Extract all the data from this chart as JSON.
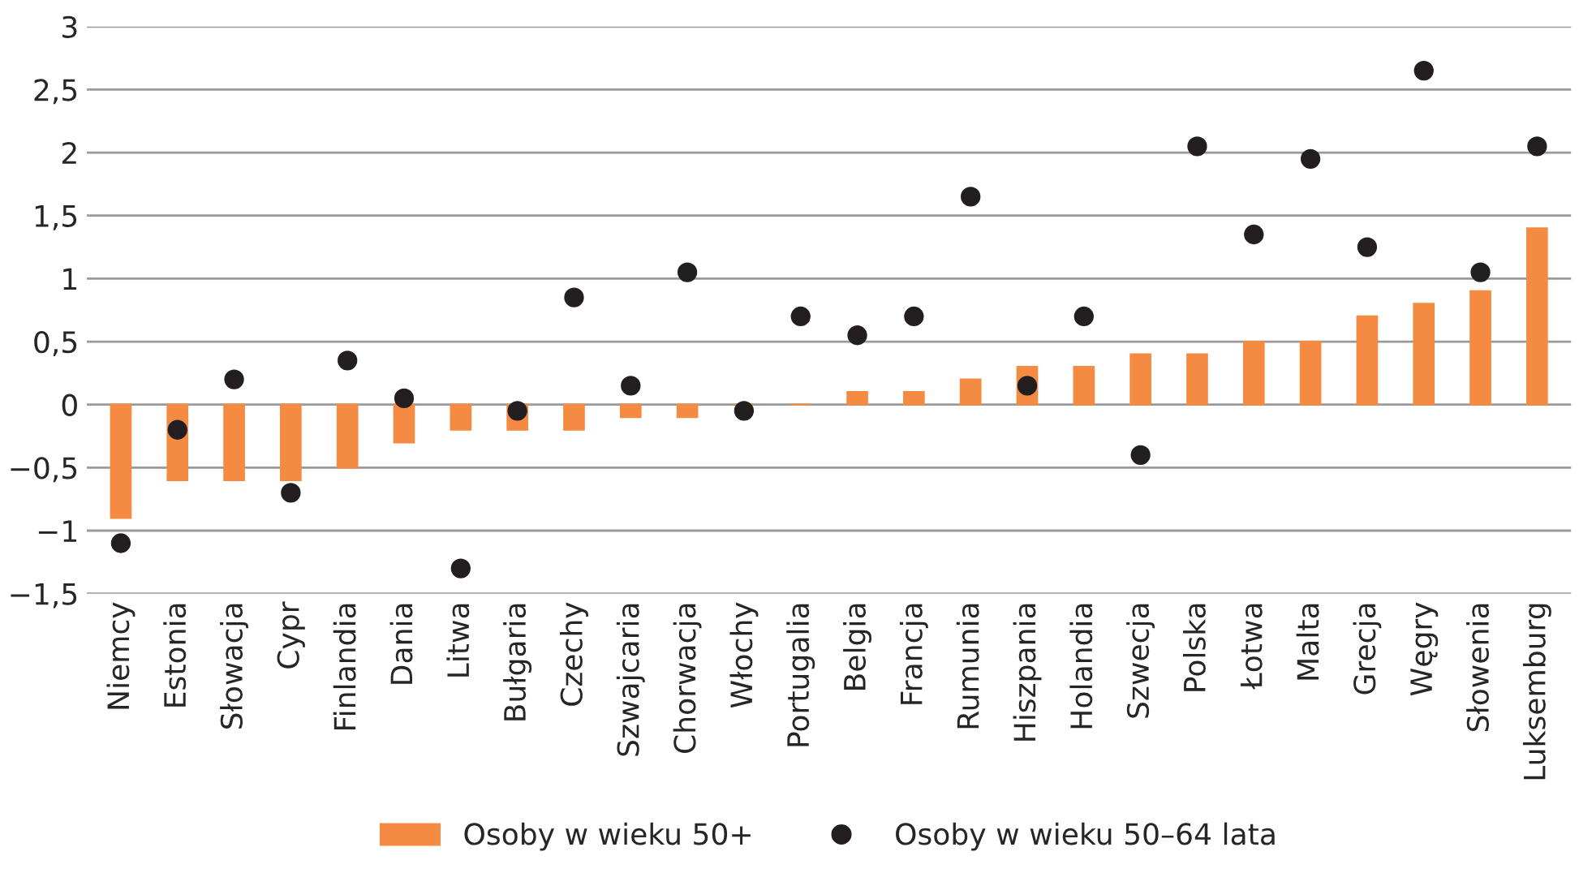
{
  "chart_data": {
    "type": "bar",
    "categories": [
      "Niemcy",
      "Estonia",
      "Słowacja",
      "Cypr",
      "Finlandia",
      "Dania",
      "Litwa",
      "Bułgaria",
      "Czechy",
      "Szwajcaria",
      "Chorwacja",
      "Włochy",
      "Portugalia",
      "Belgia",
      "Francja",
      "Rumunia",
      "Hiszpania",
      "Holandia",
      "Szwecja",
      "Polska",
      "Łotwa",
      "Malta",
      "Grecja",
      "Węgry",
      "Słowenia",
      "Luksemburg"
    ],
    "series": [
      {
        "name": "Osoby w wieku 50+",
        "color": "#f58a42",
        "values": [
          -0.9,
          -0.6,
          -0.6,
          -0.6,
          -0.5,
          -0.3,
          -0.2,
          -0.2,
          -0.2,
          -0.1,
          -0.1,
          0,
          0,
          0.1,
          0.1,
          0.2,
          0.3,
          0.3,
          0.4,
          0.4,
          0.5,
          0.5,
          0.7,
          0.8,
          0.9,
          1.4
        ]
      },
      {
        "name": "Osoby w wieku 50–64 lata",
        "type": "scatter",
        "color": "#231f20",
        "values": [
          -1.1,
          -0.2,
          0.2,
          -0.7,
          0.35,
          0.05,
          -1.3,
          -0.05,
          0.85,
          0.15,
          1.05,
          -0.05,
          0.7,
          0.55,
          0.7,
          1.65,
          0.15,
          0.7,
          -0.4,
          2.05,
          1.35,
          1.95,
          1.25,
          2.65,
          1.05,
          2.05
        ]
      }
    ],
    "ylim": [
      -1.5,
      3
    ],
    "yticks": [
      {
        "value": -1.5,
        "label": "−1,5"
      },
      {
        "value": -1,
        "label": "−1"
      },
      {
        "value": -0.5,
        "label": "−0,5"
      },
      0,
      {
        "value": 0.5,
        "label": "0,5"
      },
      1,
      {
        "value": 1.5,
        "label": "1,5"
      },
      2,
      {
        "value": 2.5,
        "label": "2,5"
      },
      3
    ],
    "grid": "y",
    "legend": "bottom",
    "marker": "circle"
  }
}
